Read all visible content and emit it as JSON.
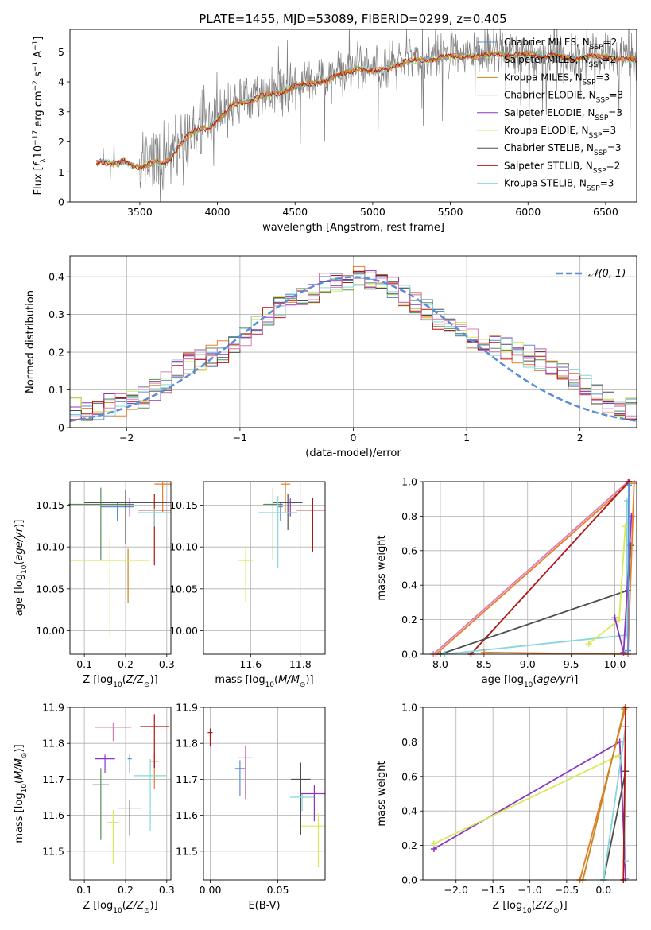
{
  "figure": {
    "title": "PLATE=1455, MJD=53089, FIBERID=0299, z=0.405",
    "colors": {
      "Chabrier MILES": "#5b8ed6",
      "Salpeter MILES": "#e87d27",
      "Kroupa MILES": "#c8861c",
      "Chabrier ELODIE": "#5a8a5a",
      "Salpeter ELODIE": "#8e35c0",
      "Kroupa ELODIE": "#d6ea5a",
      "Chabrier STELIB": "#4d4d4d",
      "Salpeter STELIB": "#b21414",
      "Kroupa STELIB": "#86d6da",
      "pink": "#d97cb5",
      "data": "#808080",
      "gaussian": "#5b8ed6"
    }
  },
  "chart_data": [
    {
      "id": "spectrum",
      "type": "line",
      "title": "PLATE=1455, MJD=53089, FIBERID=0299, z=0.405",
      "xlabel": "wavelength [Angstrom, rest frame]",
      "ylabel": "Flux [f_λ 10^-17 erg cm^-2 s^-1 A^-1]",
      "xlim": [
        3050,
        6700
      ],
      "ylim": [
        0,
        5.75
      ],
      "xticks": [
        3500,
        4000,
        4500,
        5000,
        5500,
        6000,
        6500
      ],
      "yticks": [
        0,
        1,
        2,
        3,
        4,
        5
      ],
      "legend_position": "right",
      "legend": [
        {
          "name": "Chabrier MILES, N_SSP=2",
          "base": "Chabrier MILES, N",
          "sub": "SSP",
          "tail": "=2"
        },
        {
          "name": "Salpeter MILES, N_SSP=2",
          "base": "Salpeter MILES, N",
          "sub": "SSP",
          "tail": "=2"
        },
        {
          "name": "Kroupa MILES, N_SSP=3",
          "base": "Kroupa MILES, N",
          "sub": "SSP",
          "tail": "=3"
        },
        {
          "name": "Chabrier ELODIE, N_SSP=3",
          "base": "Chabrier ELODIE, N",
          "sub": "SSP",
          "tail": "=3"
        },
        {
          "name": "Salpeter ELODIE, N_SSP=3",
          "base": "Salpeter ELODIE, N",
          "sub": "SSP",
          "tail": "=3"
        },
        {
          "name": "Kroupa ELODIE, N_SSP=3",
          "base": "Kroupa ELODIE, N",
          "sub": "SSP",
          "tail": "=3"
        },
        {
          "name": "Chabrier STELIB, N_SSP=3",
          "base": "Chabrier STELIB, N",
          "sub": "SSP",
          "tail": "=3"
        },
        {
          "name": "Salpeter STELIB, N_SSP=2",
          "base": "Salpeter STELIB, N",
          "sub": "SSP",
          "tail": "=2"
        },
        {
          "name": "Kroupa STELIB, N_SSP=3",
          "base": "Kroupa STELIB, N",
          "sub": "SSP",
          "tail": "=3"
        }
      ],
      "continuum_nodes": {
        "x": [
          3200,
          3250,
          3300,
          3350,
          3400,
          3450,
          3500,
          3550,
          3600,
          3650,
          3700,
          3750,
          3800,
          3850,
          3900,
          3950,
          4000,
          4050,
          4100,
          4200,
          4300,
          4400,
          4500,
          4600,
          4700,
          4800,
          4900,
          5000,
          5100,
          5200,
          5300,
          5400,
          5500,
          5600,
          5700,
          5800,
          5900,
          6000,
          6100,
          6200,
          6300,
          6400,
          6500,
          6600,
          6700
        ],
        "y": [
          1.3,
          1.4,
          1.35,
          1.3,
          1.4,
          1.25,
          1.2,
          1.3,
          1.4,
          1.3,
          1.5,
          1.9,
          2.2,
          2.4,
          2.5,
          2.5,
          2.8,
          3.0,
          3.3,
          3.4,
          3.6,
          3.7,
          3.9,
          4.0,
          4.1,
          4.3,
          4.5,
          4.4,
          4.5,
          4.7,
          4.8,
          4.8,
          4.9,
          4.9,
          4.9,
          5.0,
          4.9,
          5.0,
          4.9,
          4.9,
          4.8,
          4.9,
          4.9,
          4.8,
          4.8
        ]
      }
    },
    {
      "id": "residuals",
      "type": "bar",
      "xlabel": "(data-model)/error",
      "ylabel": "Normed distribution",
      "xlim": [
        -2.5,
        2.5
      ],
      "ylim": [
        0,
        0.455
      ],
      "xticks": [
        -2,
        -1,
        0,
        1,
        2
      ],
      "yticks": [
        0.0,
        0.1,
        0.2,
        0.3,
        0.4
      ],
      "legend": [
        {
          "name": "𝒩(0, 1)"
        }
      ],
      "legend_position": "top-right",
      "bin_edges": [
        -2.5,
        -2.4,
        -2.3,
        -2.2,
        -2.1,
        -2.0,
        -1.9,
        -1.8,
        -1.7,
        -1.6,
        -1.5,
        -1.4,
        -1.3,
        -1.2,
        -1.1,
        -1.0,
        -0.9,
        -0.8,
        -0.7,
        -0.6,
        -0.5,
        -0.4,
        -0.3,
        -0.2,
        -0.1,
        0.0,
        0.1,
        0.2,
        0.3,
        0.4,
        0.5,
        0.6,
        0.7,
        0.8,
        0.9,
        1.0,
        1.1,
        1.2,
        1.3,
        1.4,
        1.5,
        1.6,
        1.7,
        1.8,
        1.9,
        2.0,
        2.1,
        2.2,
        2.3,
        2.4,
        2.5
      ],
      "base_values": [
        0.05,
        0.04,
        0.05,
        0.06,
        0.06,
        0.07,
        0.08,
        0.1,
        0.12,
        0.15,
        0.17,
        0.18,
        0.19,
        0.2,
        0.22,
        0.24,
        0.27,
        0.3,
        0.32,
        0.33,
        0.34,
        0.36,
        0.38,
        0.39,
        0.39,
        0.4,
        0.39,
        0.38,
        0.37,
        0.35,
        0.33,
        0.31,
        0.29,
        0.27,
        0.25,
        0.24,
        0.23,
        0.22,
        0.21,
        0.2,
        0.19,
        0.18,
        0.17,
        0.15,
        0.13,
        0.11,
        0.09,
        0.07,
        0.06,
        0.05
      ]
    },
    {
      "id": "age-vs-Z",
      "type": "scatter",
      "xlabel": "Z [log10(Z/Z⊙)]",
      "ylabel": "age [log10(age/yr)]",
      "xlim": [
        0.065,
        0.31
      ],
      "ylim": [
        9.972,
        10.178
      ],
      "xticks": [
        0.1,
        0.2,
        0.3
      ],
      "yticks": [
        10.0,
        10.05,
        10.1,
        10.15
      ],
      "points": [
        {
          "model": "Chabrier MILES",
          "x": 0.18,
          "y": 10.148,
          "xerr": 0.04
        },
        {
          "model": "Salpeter MILES",
          "x": 0.29,
          "y": 10.175,
          "xerr": 0.02
        },
        {
          "model": "Kroupa MILES",
          "x": 0.206,
          "y": 10.083,
          "xerr": 0.0
        },
        {
          "model": "Chabrier ELODIE",
          "x": 0.14,
          "y": 10.151,
          "xerr": 0.08
        },
        {
          "model": "Salpeter ELODIE",
          "x": 0.21,
          "y": 10.153,
          "xerr": 0.11
        },
        {
          "model": "Kroupa ELODIE",
          "x": 0.162,
          "y": 10.084,
          "yerr": 0.09,
          "xerr": 0.095
        },
        {
          "model": "Chabrier STELIB",
          "x": 0.2,
          "y": 10.153,
          "xerr": 0.1
        },
        {
          "model": "Salpeter STELIB",
          "x": 0.27,
          "y": 10.144,
          "xerr": 0.04
        },
        {
          "model": "Kroupa STELIB",
          "x": 0.27,
          "y": 10.141,
          "xerr": 0.04
        }
      ]
    },
    {
      "id": "age-vs-mass",
      "type": "scatter",
      "xlabel": "mass [log10(M/M⊙)]",
      "ylabel": "",
      "xlim": [
        11.41,
        11.9
      ],
      "ylim": [
        9.972,
        10.178
      ],
      "xticks": [
        11.6,
        11.8
      ],
      "yticks": [
        10.0,
        10.05,
        10.1,
        10.15
      ],
      "points": [
        {
          "model": "Chabrier MILES",
          "x": 11.72,
          "y": 10.148
        },
        {
          "model": "Salpeter MILES",
          "x": 11.74,
          "y": 10.175
        },
        {
          "model": "Kroupa ELODIE",
          "x": 11.58,
          "y": 10.084
        },
        {
          "model": "Chabrier ELODIE",
          "x": 11.69,
          "y": 10.151
        },
        {
          "model": "Salpeter ELODIE",
          "x": 11.76,
          "y": 10.153
        },
        {
          "model": "Chabrier STELIB",
          "x": 11.75,
          "y": 10.153
        },
        {
          "model": "Salpeter STELIB",
          "x": 11.85,
          "y": 10.144
        },
        {
          "model": "Kroupa STELIB",
          "x": 11.71,
          "y": 10.141
        }
      ]
    },
    {
      "id": "weight-vs-age",
      "type": "line",
      "xlabel": "age [log10(age/yr)]",
      "ylabel": "mass weight",
      "xlim": [
        7.8,
        10.25
      ],
      "ylim": [
        0,
        1
      ],
      "xticks": [
        8.0,
        8.5,
        9.0,
        9.5,
        10.0
      ],
      "yticks": [
        0.0,
        0.2,
        0.4,
        0.6,
        0.8,
        1.0
      ],
      "series": [
        {
          "model": "pink",
          "x": [
            7.92,
            10.15
          ],
          "y": [
            0.0,
            1.0
          ]
        },
        {
          "model": "Salpeter MILES",
          "x": [
            7.95,
            10.16
          ],
          "y": [
            0.0,
            0.99
          ]
        },
        {
          "model": "Salpeter STELIB",
          "x": [
            8.35,
            10.16
          ],
          "y": [
            0.0,
            1.0
          ]
        },
        {
          "model": "Chabrier STELIB",
          "x": [
            8.0,
            10.15,
            10.18
          ],
          "y": [
            0.0,
            0.37,
            0.63
          ]
        },
        {
          "model": "Kroupa STELIB",
          "x": [
            8.05,
            10.13,
            10.14
          ],
          "y": [
            0.0,
            0.11,
            0.89
          ]
        },
        {
          "model": "Kroupa ELODIE",
          "x": [
            9.7,
            10.05,
            10.12
          ],
          "y": [
            0.06,
            0.2,
            0.74
          ]
        },
        {
          "model": "Salpeter ELODIE",
          "x": [
            10.0,
            10.1,
            10.19
          ],
          "y": [
            0.21,
            0.01,
            0.8
          ]
        },
        {
          "model": "Salpeter MILES",
          "x": [
            8.5,
            10.15,
            10.22
          ],
          "y": [
            0.01,
            0.0,
            0.99
          ]
        },
        {
          "model": "Chabrier MILES",
          "x": [
            10.15,
            10.16
          ],
          "y": [
            0.02,
            0.98
          ]
        }
      ]
    },
    {
      "id": "mass-vs-Z",
      "type": "scatter",
      "xlabel": "Z [log10(Z/Z⊙)]",
      "ylabel": "mass [log10(M/M⊙)]",
      "xlim": [
        0.065,
        0.31
      ],
      "ylim": [
        11.42,
        11.9
      ],
      "xticks": [
        0.1,
        0.2,
        0.3
      ],
      "yticks": [
        11.5,
        11.6,
        11.7,
        11.8,
        11.9
      ],
      "points": [
        {
          "model": "Chabrier MILES",
          "x": 0.21,
          "y": 11.757
        },
        {
          "model": "Salpeter MILES",
          "x": 0.27,
          "y": 11.75
        },
        {
          "model": "Kroupa ELODIE",
          "x": 0.17,
          "y": 11.58
        },
        {
          "model": "Chabrier ELODIE",
          "x": 0.14,
          "y": 11.685
        },
        {
          "model": "Salpeter ELODIE",
          "x": 0.15,
          "y": 11.757
        },
        {
          "model": "Chabrier STELIB",
          "x": 0.21,
          "y": 11.62
        },
        {
          "model": "Salpeter STELIB",
          "x": 0.27,
          "y": 11.847
        },
        {
          "model": "Kroupa STELIB",
          "x": 0.26,
          "y": 11.71
        },
        {
          "model": "pink",
          "x": 0.17,
          "y": 11.845
        }
      ]
    },
    {
      "id": "mass-vs-EBV",
      "type": "scatter",
      "xlabel": "E(B-V)",
      "ylabel": "",
      "xlim": [
        -0.005,
        0.085
      ],
      "ylim": [
        11.42,
        11.9
      ],
      "xticks": [
        0.0,
        0.05
      ],
      "yticks": [
        11.5,
        11.6,
        11.7,
        11.8,
        11.9
      ],
      "points": [
        {
          "model": "Salpeter STELIB",
          "x": 0.0,
          "y": 11.83
        },
        {
          "model": "Chabrier MILES",
          "x": 0.022,
          "y": 11.73
        },
        {
          "model": "pink",
          "x": 0.026,
          "y": 11.76
        },
        {
          "model": "Chabrier STELIB",
          "x": 0.067,
          "y": 11.7
        },
        {
          "model": "Kroupa STELIB",
          "x": 0.068,
          "y": 11.65
        },
        {
          "model": "Salpeter ELODIE",
          "x": 0.077,
          "y": 11.66
        },
        {
          "model": "Kroupa ELODIE",
          "x": 0.08,
          "y": 11.57
        }
      ]
    },
    {
      "id": "weight-vs-Z",
      "type": "line",
      "xlabel": "Z [log10(Z/Z⊙)]",
      "ylabel": "mass weight",
      "xlim": [
        -2.45,
        0.45
      ],
      "ylim": [
        0,
        1
      ],
      "xticks": [
        -2.0,
        -1.5,
        -1.0,
        -0.5,
        0.0
      ],
      "yticks": [
        0.0,
        0.2,
        0.4,
        0.6,
        0.8,
        1.0
      ],
      "series": [
        {
          "model": "Salpeter ELODIE",
          "x": [
            -2.3,
            0.22,
            0.3
          ],
          "y": [
            0.18,
            0.8,
            0.01
          ]
        },
        {
          "model": "Kroupa ELODIE",
          "x": [
            -2.3,
            0.2
          ],
          "y": [
            0.21,
            0.72
          ]
        },
        {
          "model": "Salpeter MILES",
          "x": [
            -0.32,
            0.3
          ],
          "y": [
            0.0,
            1.0
          ]
        },
        {
          "model": "Kroupa MILES",
          "x": [
            -0.28,
            0.28
          ],
          "y": [
            0.0,
            0.99
          ]
        },
        {
          "model": "Chabrier STELIB",
          "x": [
            0.0,
            0.3,
            0.3
          ],
          "y": [
            0.0,
            0.63,
            0.37
          ]
        },
        {
          "model": "Kroupa STELIB",
          "x": [
            0.0,
            0.3,
            0.3
          ],
          "y": [
            0.0,
            0.89,
            0.11
          ]
        },
        {
          "model": "Salpeter STELIB",
          "x": [
            0.27,
            0.3
          ],
          "y": [
            0.0,
            1.0
          ]
        }
      ]
    }
  ]
}
